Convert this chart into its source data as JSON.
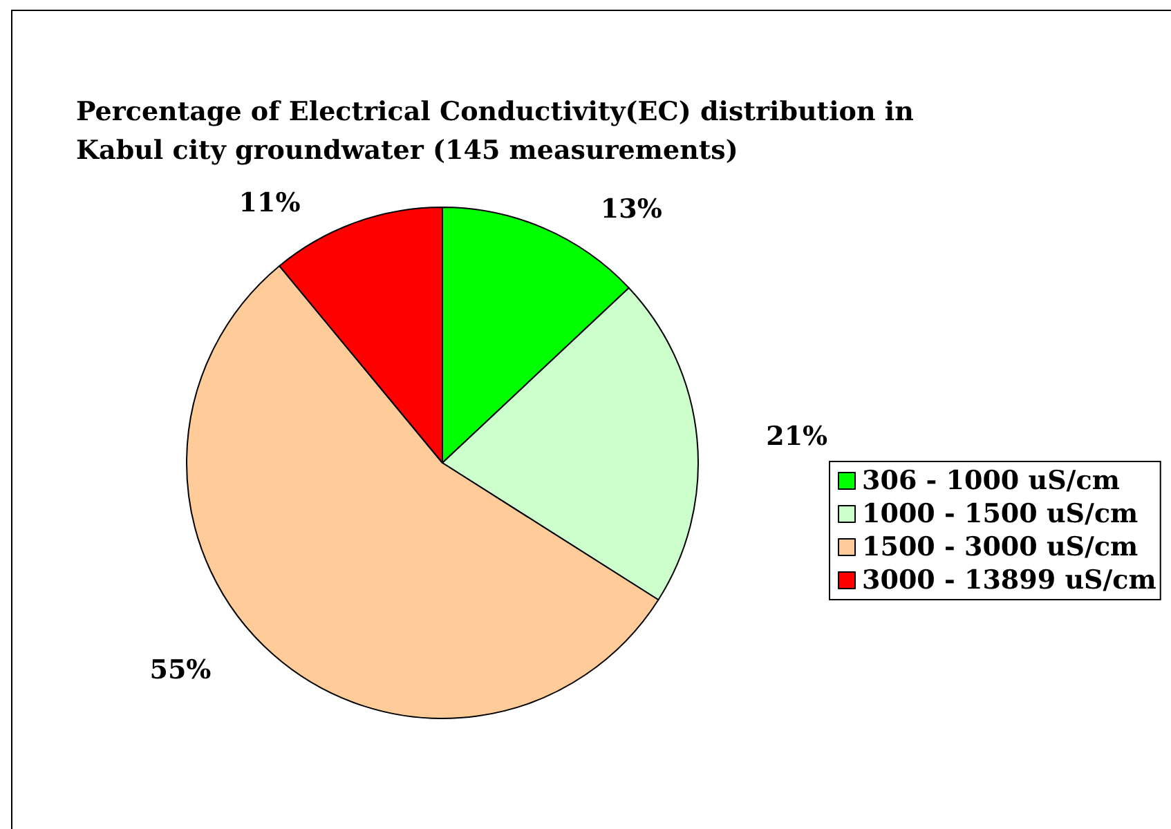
{
  "chart_data": {
    "type": "pie",
    "title": "Percentage of Electrical Conductivity(EC) distribution in\nKabul city groundwater (145 measurements)",
    "categories": [
      "306 - 1000 uS/cm",
      "1000 - 1500 uS/cm",
      "1500 - 3000 uS/cm",
      "3000 - 13899 uS/cm"
    ],
    "values": [
      13,
      21,
      55,
      11
    ],
    "value_labels": [
      "13%",
      "21%",
      "55%",
      "11%"
    ],
    "colors": [
      "#00ff00",
      "#ccffcc",
      "#ffcc99",
      "#ff0000"
    ],
    "legend": "right"
  }
}
